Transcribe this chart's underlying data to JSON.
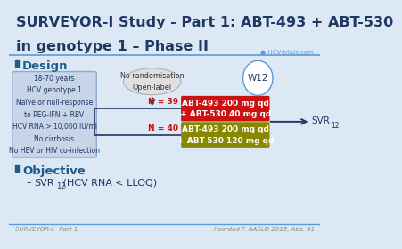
{
  "title_line1": "SURVEYOR-I Study - Part 1: ABT-493 + ABT-530",
  "title_line2": "in genotype 1 – Phase II",
  "title_color": "#1F3864",
  "title_fontsize": 11.5,
  "background_color": "#dce9f5",
  "section_design": "Design",
  "section_objective": "Objective",
  "section_color": "#1F5C8B",
  "bullet_color": "#1F5C8B",
  "eligibility_text": "18-70 years\nHCV genotype 1\nNaïve or null-response\nto PEG-IFN + RBV\nHCV RNA > 10,000 IU/ml\nNo cirrhosis\nNo HBV or HIV co-infection",
  "eligibility_box_color": "#c8d4e8",
  "eligibility_border_color": "#8faacc",
  "ellipse_text": "No randomisation\nOpen-label",
  "ellipse_fill": "#e0e0e0",
  "ellipse_border": "#b0b0b0",
  "arm1_text": "ABT-493 200 mg qd\n+ ABT-530 40 mg qd",
  "arm2_text": "ABT-493 200 mg qd\n+ ABT-530 120 mg qd",
  "arm1_color": "#cc1111",
  "arm2_color": "#888800",
  "arm1_n": "N = 39",
  "arm2_n": "N = 40",
  "n_color": "#cc1111",
  "w12_text": "W12",
  "w12_border": "#5B9BD5",
  "svr_text": "SVR",
  "svr_sub": "12",
  "svr_color": "#1F3864",
  "objective_text": " (HCV RNA < LLOQ)",
  "objective_color": "#1F3864",
  "footer_left": "SURVEYOR-I · Part 1",
  "footer_right": "Poordad F. AASLD 2015, Abs. 41",
  "footer_color": "#888888",
  "line_color": "#1F3864",
  "divider_color": "#5B9BD5",
  "header_line_color": "#5B9BD5",
  "hcv_logo_text": "● HCV-trials.com",
  "hcv_logo_color": "#5B9BD5"
}
